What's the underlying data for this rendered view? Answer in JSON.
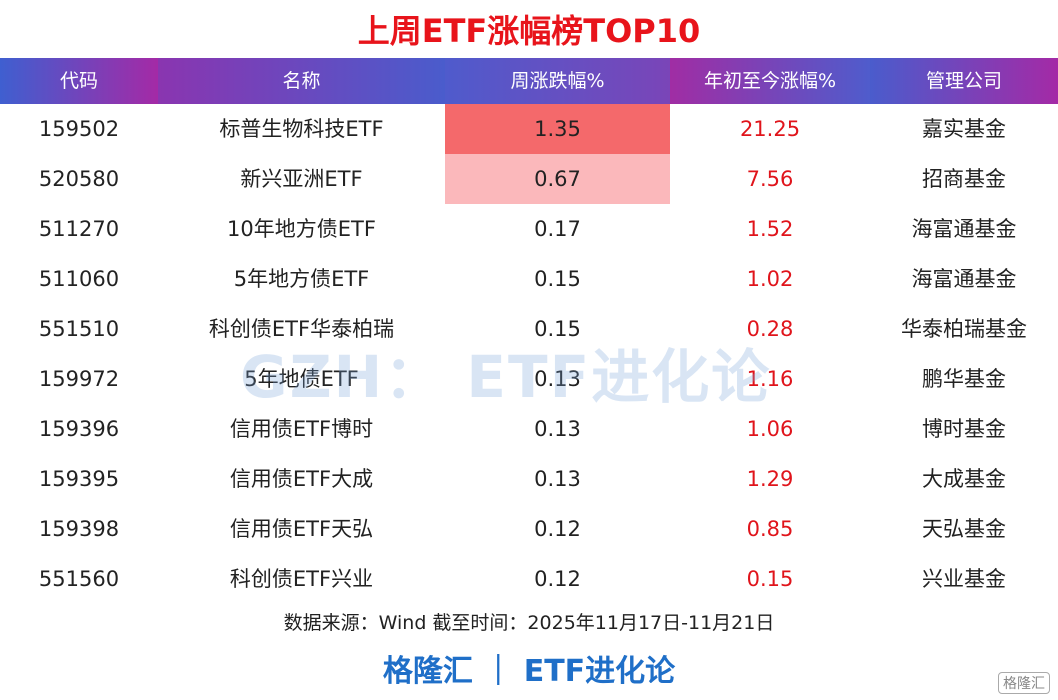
{
  "header": {
    "title": "上周ETF涨幅榜TOP10"
  },
  "table": {
    "columns": [
      "代码",
      "名称",
      "周涨跌幅%",
      "年初至今涨幅%",
      "管理公司"
    ],
    "rows": [
      [
        "159502",
        "标普生物科技ETF",
        "1.35",
        "21.25",
        "嘉实基金"
      ],
      [
        "520580",
        "新兴亚洲ETF",
        "0.67",
        "7.56",
        "招商基金"
      ],
      [
        "511270",
        "10年地方债ETF",
        "0.17",
        "1.52",
        "海富通基金"
      ],
      [
        "511060",
        "5年地方债ETF",
        "0.15",
        "1.02",
        "海富通基金"
      ],
      [
        "551510",
        "科创债ETF华泰柏瑞",
        "0.15",
        "0.28",
        "华泰柏瑞基金"
      ],
      [
        "159972",
        "5年地债ETF",
        "0.13",
        "1.16",
        "鹏华基金"
      ],
      [
        "159396",
        "信用债ETF博时",
        "0.13",
        "1.06",
        "博时基金"
      ],
      [
        "159395",
        "信用债ETF大成",
        "0.13",
        "1.29",
        "大成基金"
      ],
      [
        "159398",
        "信用债ETF天弘",
        "0.12",
        "0.85",
        "天弘基金"
      ],
      [
        "551560",
        "科创债ETF兴业",
        "0.12",
        "0.15",
        "兴业基金"
      ]
    ]
  },
  "watermark": "GZH： ETF进化论",
  "source": "数据来源：Wind 截至时间：2025年11月17日-11月21日",
  "footer": "格隆汇 ｜ ETF进化论",
  "logo": "格隆汇"
}
